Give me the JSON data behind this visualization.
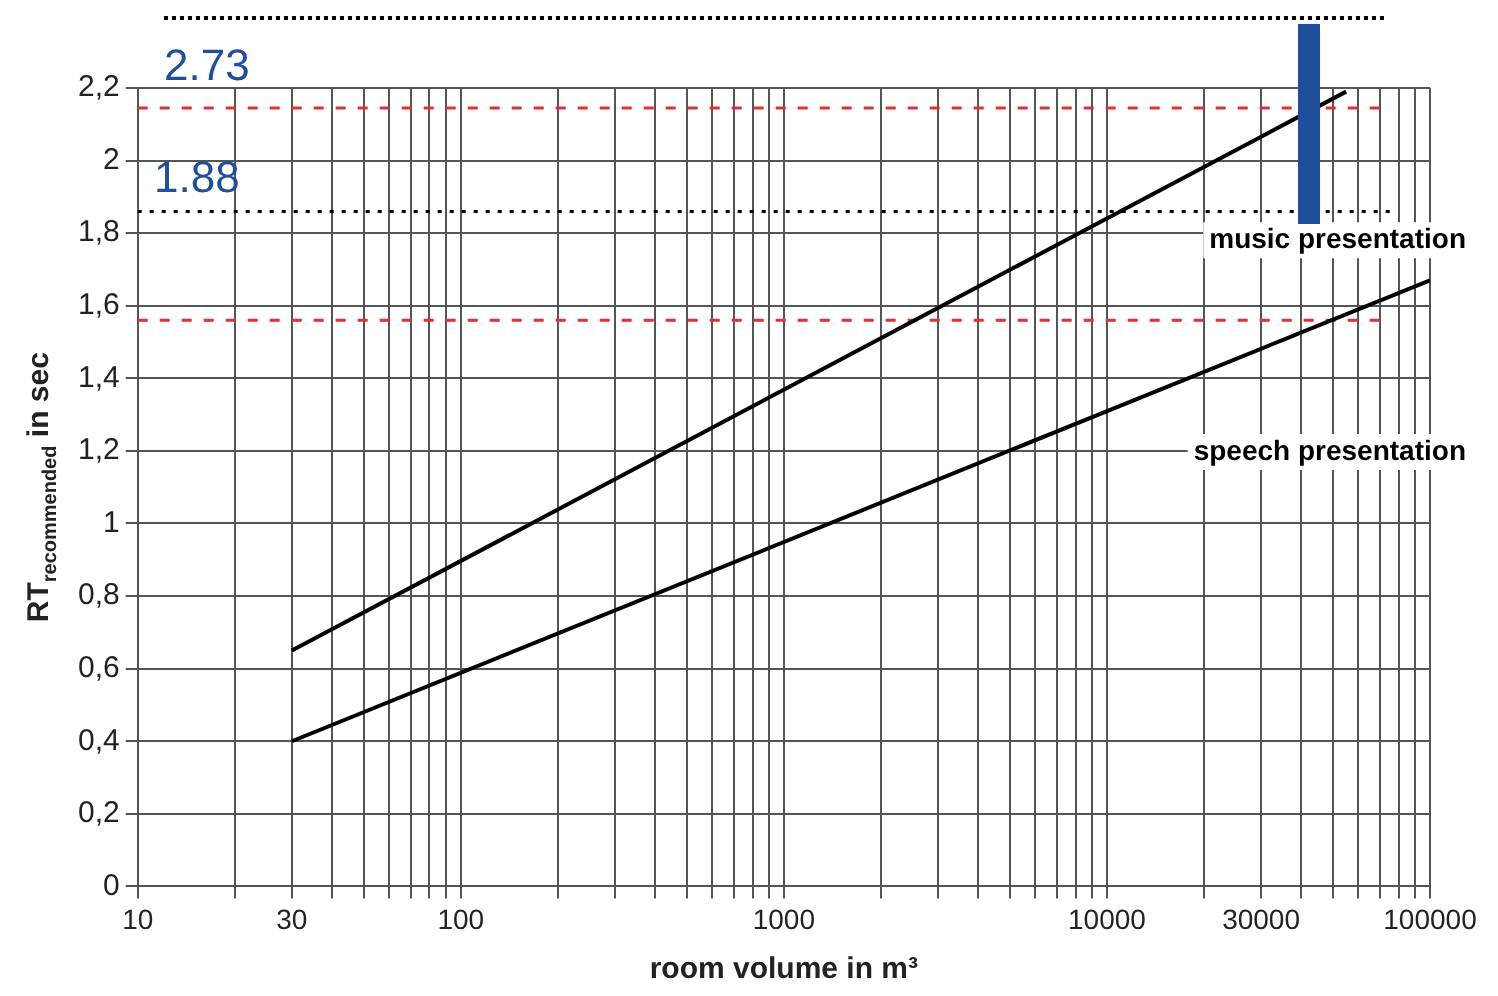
{
  "chart_data": {
    "type": "line",
    "xlabel": "room volume in m³",
    "ylabel": "RT$_{recommended}$ in sec",
    "log": "x",
    "grid": true,
    "marker": "none",
    "line_style": "solid",
    "legend": false,
    "xlim": [
      10,
      100000
    ],
    "xticks": [
      10,
      {
        "value": 20,
        "label": null
      },
      30,
      {
        "value": 40,
        "label": null
      },
      {
        "value": 50,
        "label": null
      },
      {
        "value": 60,
        "label": null
      },
      {
        "value": 70,
        "label": null
      },
      {
        "value": 80,
        "label": null
      },
      {
        "value": 90,
        "label": null
      },
      100,
      {
        "value": 200,
        "label": null
      },
      {
        "value": 300,
        "label": null
      },
      {
        "value": 400,
        "label": null
      },
      {
        "value": 500,
        "label": null
      },
      {
        "value": 600,
        "label": null
      },
      {
        "value": 700,
        "label": null
      },
      {
        "value": 800,
        "label": null
      },
      {
        "value": 900,
        "label": null
      },
      1000,
      {
        "value": 2000,
        "label": null
      },
      {
        "value": 3000,
        "label": null
      },
      {
        "value": 4000,
        "label": null
      },
      {
        "value": 5000,
        "label": null
      },
      {
        "value": 6000,
        "label": null
      },
      {
        "value": 7000,
        "label": null
      },
      {
        "value": 8000,
        "label": null
      },
      {
        "value": 9000,
        "label": null
      },
      10000,
      {
        "value": 20000,
        "label": null
      },
      30000,
      {
        "value": 40000,
        "label": null
      },
      {
        "value": 50000,
        "label": null
      },
      {
        "value": 60000,
        "label": null
      },
      {
        "value": 70000,
        "label": null
      },
      {
        "value": 80000,
        "label": null
      },
      {
        "value": 90000,
        "label": null
      },
      100000
    ],
    "ylim": [
      0,
      2.2
    ],
    "yticks": [
      0,
      {
        "value": 0.2,
        "label": "0,2"
      },
      {
        "value": 0.4,
        "label": "0,4"
      },
      {
        "value": 0.6,
        "label": "0,6"
      },
      {
        "value": 0.8,
        "label": "0,8"
      },
      1,
      {
        "value": 1.2,
        "label": "1,2"
      },
      {
        "value": 1.4,
        "label": "1,4"
      },
      {
        "value": 1.6,
        "label": "1,6"
      },
      {
        "value": 1.8,
        "label": "1,8"
      },
      2,
      {
        "value": 2.2,
        "label": "2,2"
      }
    ],
    "series": [
      {
        "name": "music presentation",
        "color": "#000000",
        "x": [
          30,
          55000
        ],
        "values": [
          0.65,
          2.19
        ]
      },
      {
        "name": "speech presentation",
        "color": "#000000",
        "x": [
          30,
          100000
        ],
        "values": [
          0.4,
          1.67
        ]
      }
    ],
    "ref_lines": [
      {
        "axis": "y",
        "value": 2.145,
        "color": "#e03030",
        "line_style": "dashed"
      },
      {
        "axis": "y",
        "value": 1.56,
        "color": "#e03030",
        "line_style": "dashed"
      },
      {
        "axis": "y",
        "value": 1.86,
        "color": "#000000",
        "line_style": "dotted"
      }
    ],
    "annotations": [
      "2.73",
      "1.88"
    ]
  }
}
